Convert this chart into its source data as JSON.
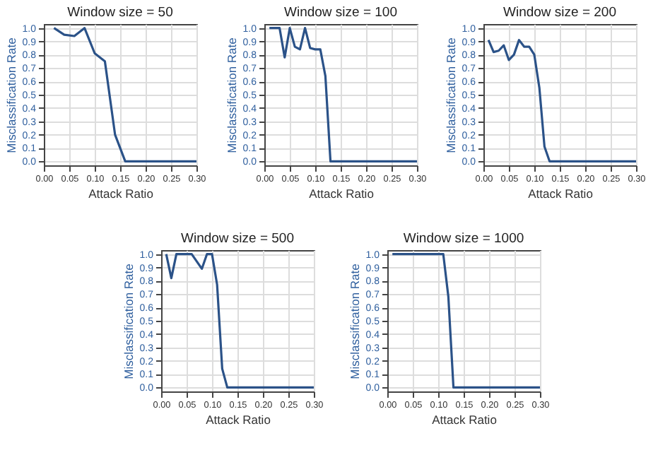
{
  "chart_data": [
    {
      "type": "line",
      "title": "Window size = 50",
      "xlabel": "Attack Ratio",
      "ylabel": "Misclassification Rate",
      "xlim": [
        0,
        0.3
      ],
      "ylim": [
        -0.03,
        1.03
      ],
      "grid": true,
      "marker": "none",
      "xticks": [
        {
          "value": 0,
          "label": "0.00"
        },
        {
          "value": 0.05,
          "label": "0.05"
        },
        {
          "value": 0.1,
          "label": "0.10"
        },
        {
          "value": 0.15,
          "label": "0.15"
        },
        {
          "value": 0.2,
          "label": "0.20"
        },
        {
          "value": 0.25,
          "label": "0.25"
        },
        {
          "value": 0.3,
          "label": "0.30"
        }
      ],
      "yticks": [
        {
          "value": 0,
          "label": "0.0"
        },
        {
          "value": 0.1,
          "label": "0.1"
        },
        {
          "value": 0.2,
          "label": "0.2"
        },
        {
          "value": 0.3,
          "label": "0.3"
        },
        {
          "value": 0.4,
          "label": "0.4"
        },
        {
          "value": 0.5,
          "label": "0.5"
        },
        {
          "value": 0.6,
          "label": "0.6"
        },
        {
          "value": 0.7,
          "label": "0.7"
        },
        {
          "value": 0.8,
          "label": "0.8"
        },
        {
          "value": 0.9,
          "label": "0.9"
        },
        {
          "value": 1,
          "label": "1.0"
        }
      ],
      "x": [
        0.02,
        0.04,
        0.06,
        0.08,
        0.1,
        0.12,
        0.14,
        0.16,
        0.3
      ],
      "series": [
        {
          "color": "#2b5288",
          "values": [
            1.0,
            0.95,
            0.94,
            1.0,
            0.81,
            0.75,
            0.2,
            0.0,
            0.0
          ]
        }
      ]
    },
    {
      "type": "line",
      "title": "Window size = 100",
      "xlabel": "Attack Ratio",
      "ylabel": "Misclassification Rate",
      "xlim": [
        0,
        0.3
      ],
      "ylim": [
        -0.03,
        1.03
      ],
      "grid": true,
      "marker": "none",
      "xticks": [
        {
          "value": 0,
          "label": "0.00"
        },
        {
          "value": 0.05,
          "label": "0.05"
        },
        {
          "value": 0.1,
          "label": "0.10"
        },
        {
          "value": 0.15,
          "label": "0.15"
        },
        {
          "value": 0.2,
          "label": "0.20"
        },
        {
          "value": 0.25,
          "label": "0.25"
        },
        {
          "value": 0.3,
          "label": "0.30"
        }
      ],
      "yticks": [
        {
          "value": 0,
          "label": "0.0"
        },
        {
          "value": 0.1,
          "label": "0.1"
        },
        {
          "value": 0.2,
          "label": "0.2"
        },
        {
          "value": 0.3,
          "label": "0.3"
        },
        {
          "value": 0.4,
          "label": "0.4"
        },
        {
          "value": 0.5,
          "label": "0.5"
        },
        {
          "value": 0.6,
          "label": "0.6"
        },
        {
          "value": 0.7,
          "label": "0.7"
        },
        {
          "value": 0.8,
          "label": "0.8"
        },
        {
          "value": 0.9,
          "label": "0.9"
        },
        {
          "value": 1,
          "label": "1.0"
        }
      ],
      "x": [
        0.01,
        0.03,
        0.04,
        0.05,
        0.06,
        0.07,
        0.08,
        0.09,
        0.1,
        0.11,
        0.12,
        0.13,
        0.3
      ],
      "series": [
        {
          "color": "#2b5288",
          "values": [
            1.0,
            1.0,
            0.78,
            1.0,
            0.86,
            0.84,
            1.0,
            0.85,
            0.84,
            0.84,
            0.64,
            0.0,
            0.0
          ]
        }
      ]
    },
    {
      "type": "line",
      "title": "Window size = 200",
      "xlabel": "Attack Ratio",
      "ylabel": "Misclassification Rate",
      "xlim": [
        0,
        0.3
      ],
      "ylim": [
        -0.03,
        1.03
      ],
      "grid": true,
      "marker": "none",
      "xticks": [
        {
          "value": 0,
          "label": "0.00"
        },
        {
          "value": 0.05,
          "label": "0.05"
        },
        {
          "value": 0.1,
          "label": "0.10"
        },
        {
          "value": 0.15,
          "label": "0.15"
        },
        {
          "value": 0.2,
          "label": "0.20"
        },
        {
          "value": 0.25,
          "label": "0.25"
        },
        {
          "value": 0.3,
          "label": "0.30"
        }
      ],
      "yticks": [
        {
          "value": 0,
          "label": "0.0"
        },
        {
          "value": 0.1,
          "label": "0.1"
        },
        {
          "value": 0.2,
          "label": "0.2"
        },
        {
          "value": 0.3,
          "label": "0.3"
        },
        {
          "value": 0.4,
          "label": "0.4"
        },
        {
          "value": 0.5,
          "label": "0.5"
        },
        {
          "value": 0.6,
          "label": "0.6"
        },
        {
          "value": 0.7,
          "label": "0.7"
        },
        {
          "value": 0.8,
          "label": "0.8"
        },
        {
          "value": 0.9,
          "label": "0.9"
        },
        {
          "value": 1,
          "label": "1.0"
        }
      ],
      "x": [
        0.01,
        0.02,
        0.03,
        0.04,
        0.05,
        0.06,
        0.07,
        0.08,
        0.09,
        0.1,
        0.11,
        0.12,
        0.13,
        0.3
      ],
      "series": [
        {
          "color": "#2b5288",
          "values": [
            0.91,
            0.82,
            0.83,
            0.87,
            0.76,
            0.8,
            0.91,
            0.86,
            0.86,
            0.8,
            0.55,
            0.11,
            0.0,
            0.0
          ]
        }
      ]
    },
    {
      "type": "line",
      "title": "Window size = 500",
      "xlabel": "Attack Ratio",
      "ylabel": "Misclassification Rate",
      "xlim": [
        0,
        0.3
      ],
      "ylim": [
        -0.03,
        1.03
      ],
      "grid": true,
      "marker": "none",
      "xticks": [
        {
          "value": 0,
          "label": "0.00"
        },
        {
          "value": 0.05,
          "label": "0.05"
        },
        {
          "value": 0.1,
          "label": "0.10"
        },
        {
          "value": 0.15,
          "label": "0.15"
        },
        {
          "value": 0.2,
          "label": "0.20"
        },
        {
          "value": 0.25,
          "label": "0.25"
        },
        {
          "value": 0.3,
          "label": "0.30"
        }
      ],
      "yticks": [
        {
          "value": 0,
          "label": "0.0"
        },
        {
          "value": 0.1,
          "label": "0.1"
        },
        {
          "value": 0.2,
          "label": "0.2"
        },
        {
          "value": 0.3,
          "label": "0.3"
        },
        {
          "value": 0.4,
          "label": "0.4"
        },
        {
          "value": 0.5,
          "label": "0.5"
        },
        {
          "value": 0.6,
          "label": "0.6"
        },
        {
          "value": 0.7,
          "label": "0.7"
        },
        {
          "value": 0.8,
          "label": "0.8"
        },
        {
          "value": 0.9,
          "label": "0.9"
        },
        {
          "value": 1,
          "label": "1.0"
        }
      ],
      "x": [
        0.01,
        0.02,
        0.03,
        0.06,
        0.08,
        0.09,
        0.1,
        0.11,
        0.12,
        0.13,
        0.3
      ],
      "series": [
        {
          "color": "#2b5288",
          "values": [
            1.0,
            0.82,
            1.0,
            1.0,
            0.89,
            1.0,
            1.0,
            0.77,
            0.14,
            0.0,
            0.0
          ]
        }
      ]
    },
    {
      "type": "line",
      "title": "Window size = 1000",
      "xlabel": "Attack Ratio",
      "ylabel": "Misclassification Rate",
      "xlim": [
        0,
        0.3
      ],
      "ylim": [
        -0.03,
        1.03
      ],
      "grid": true,
      "marker": "none",
      "xticks": [
        {
          "value": 0,
          "label": "0.00"
        },
        {
          "value": 0.05,
          "label": "0.05"
        },
        {
          "value": 0.1,
          "label": "0.10"
        },
        {
          "value": 0.15,
          "label": "0.15"
        },
        {
          "value": 0.2,
          "label": "0.20"
        },
        {
          "value": 0.25,
          "label": "0.25"
        },
        {
          "value": 0.3,
          "label": "0.30"
        }
      ],
      "yticks": [
        {
          "value": 0,
          "label": "0.0"
        },
        {
          "value": 0.1,
          "label": "0.1"
        },
        {
          "value": 0.2,
          "label": "0.2"
        },
        {
          "value": 0.3,
          "label": "0.3"
        },
        {
          "value": 0.4,
          "label": "0.4"
        },
        {
          "value": 0.5,
          "label": "0.5"
        },
        {
          "value": 0.6,
          "label": "0.6"
        },
        {
          "value": 0.7,
          "label": "0.7"
        },
        {
          "value": 0.8,
          "label": "0.8"
        },
        {
          "value": 0.9,
          "label": "0.9"
        },
        {
          "value": 1,
          "label": "1.0"
        }
      ],
      "x": [
        0.01,
        0.11,
        0.12,
        0.13,
        0.3
      ],
      "series": [
        {
          "color": "#2b5288",
          "values": [
            1.0,
            1.0,
            0.68,
            0.0,
            0.0
          ]
        }
      ]
    }
  ]
}
